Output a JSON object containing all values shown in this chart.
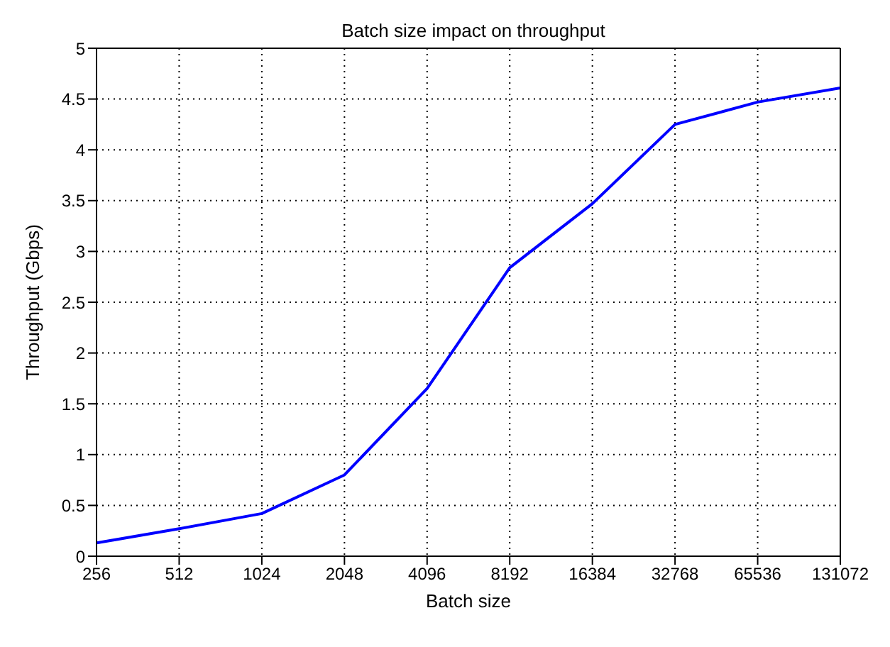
{
  "chart_data": {
    "type": "line",
    "title": "Batch size impact on throughput",
    "xlabel": "Batch size",
    "ylabel": "Throughput (Gbps)",
    "x": [
      256,
      512,
      1024,
      2048,
      4096,
      8192,
      16384,
      32768,
      65536,
      131072
    ],
    "series": [
      {
        "color": "#0000ff",
        "values": [
          0.13,
          0.27,
          0.42,
          0.8,
          1.65,
          2.84,
          3.47,
          4.25,
          4.47,
          4.61
        ]
      }
    ],
    "log": "x",
    "xlim": [
      256,
      131072
    ],
    "xticks": [
      256,
      512,
      1024,
      2048,
      4096,
      8192,
      16384,
      32768,
      65536,
      131072
    ],
    "ylim": [
      0,
      5
    ],
    "yticks": [
      0,
      0.5,
      1,
      1.5,
      2,
      2.5,
      3,
      3.5,
      4,
      4.5,
      5
    ],
    "grid": true,
    "line_style": "solid",
    "marker": "none"
  }
}
